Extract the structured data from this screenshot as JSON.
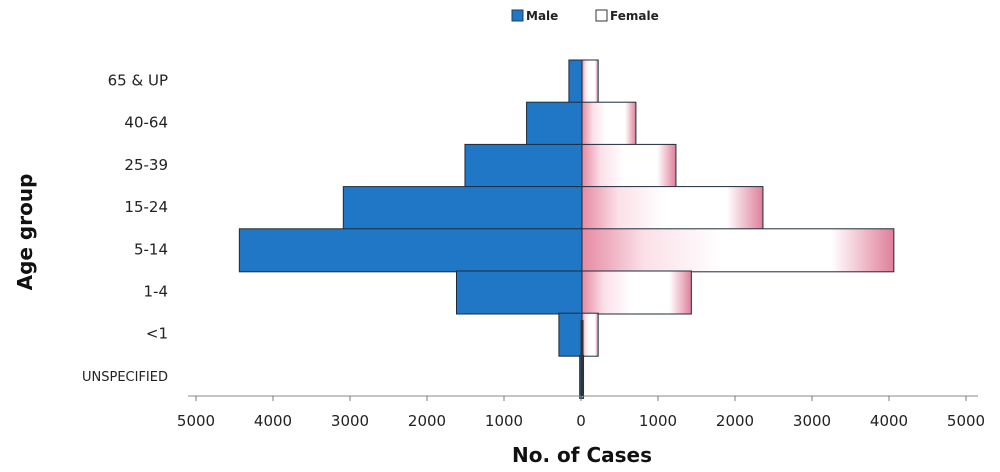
{
  "chart_data": {
    "type": "bar",
    "orientation": "horizontal",
    "layout": "population-pyramid",
    "title": "",
    "xlabel": "No. of Cases",
    "ylabel": "Age group",
    "categories": [
      "65 & UP",
      "40-64",
      "25-39",
      "15-24",
      "5-14",
      "1-4",
      "<1",
      "UNSPECIFIED"
    ],
    "series": [
      {
        "name": "Male",
        "color": "#1f77c6",
        "side": "left",
        "values": [
          170,
          720,
          1520,
          3100,
          4450,
          1630,
          300,
          30
        ]
      },
      {
        "name": "Female",
        "color": "#e58aa3",
        "side": "right",
        "values": [
          210,
          700,
          1220,
          2350,
          4050,
          1420,
          210,
          20
        ]
      }
    ],
    "xlim": [
      -5000,
      5000
    ],
    "x_ticks": [
      "5000",
      "4000",
      "3000",
      "2000",
      "1000",
      "0",
      "1000",
      "2000",
      "3000",
      "4000",
      "5000"
    ],
    "legend": {
      "position": "top",
      "items": [
        "Male",
        "Female"
      ]
    },
    "grid": false
  }
}
